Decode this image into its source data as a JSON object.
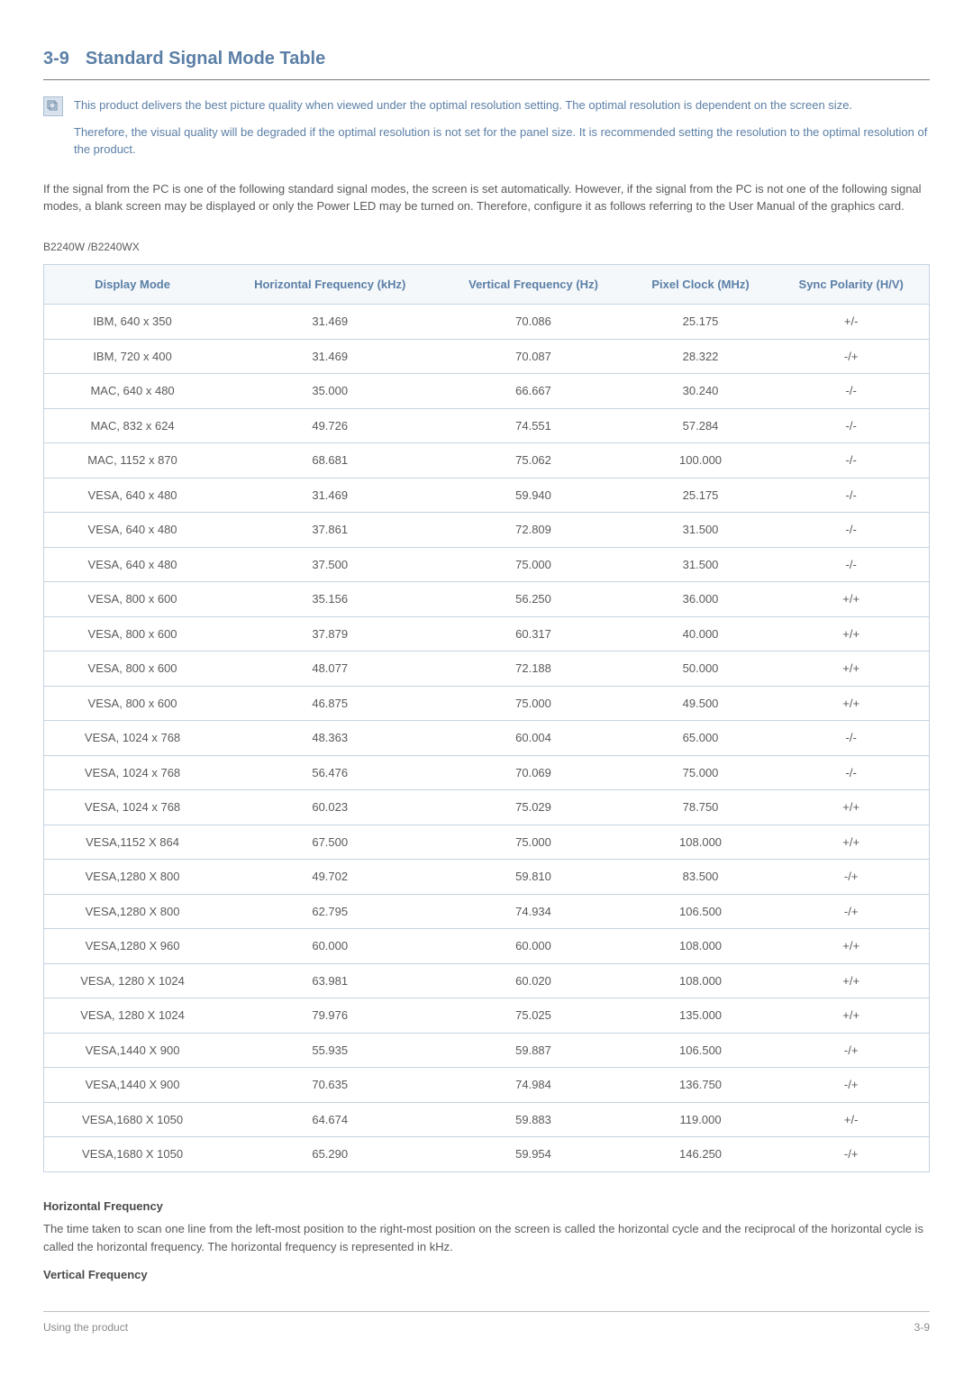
{
  "heading": {
    "number": "3-9",
    "title": "Standard Signal Mode Table"
  },
  "note": {
    "p1": "This product delivers the best picture quality when viewed under the optimal resolution setting. The optimal resolution is dependent on the screen size.",
    "p2": "Therefore, the visual quality will be degraded if the optimal resolution is not set for the panel size. It is recommended setting the resolution to the optimal resolution of the product."
  },
  "intro": "If the signal from the PC is one of the following standard signal modes, the screen is set automatically. However, if the signal from the PC is not one of the following signal modes, a blank screen may be displayed or only the Power LED may be turned on. Therefore, configure it as follows referring to the User Manual of the graphics card.",
  "model": "B2240W /B2240WX",
  "table": {
    "columns": [
      "Display Mode",
      "Horizontal Frequency (kHz)",
      "Vertical Frequency (Hz)",
      "Pixel Clock (MHz)",
      "Sync Polarity (H/V)"
    ],
    "rows": [
      [
        "IBM, 640 x 350",
        "31.469",
        "70.086",
        "25.175",
        "+/-"
      ],
      [
        "IBM, 720 x 400",
        "31.469",
        "70.087",
        "28.322",
        "-/+"
      ],
      [
        "MAC, 640 x 480",
        "35.000",
        "66.667",
        "30.240",
        "-/-"
      ],
      [
        "MAC, 832 x 624",
        "49.726",
        "74.551",
        "57.284",
        "-/-"
      ],
      [
        "MAC, 1152 x 870",
        "68.681",
        "75.062",
        "100.000",
        "-/-"
      ],
      [
        "VESA, 640 x 480",
        "31.469",
        "59.940",
        "25.175",
        "-/-"
      ],
      [
        "VESA, 640 x 480",
        "37.861",
        "72.809",
        "31.500",
        "-/-"
      ],
      [
        "VESA, 640 x 480",
        "37.500",
        "75.000",
        "31.500",
        "-/-"
      ],
      [
        "VESA, 800 x 600",
        "35.156",
        "56.250",
        "36.000",
        "+/+"
      ],
      [
        "VESA, 800 x 600",
        "37.879",
        "60.317",
        "40.000",
        "+/+"
      ],
      [
        "VESA, 800 x 600",
        "48.077",
        "72.188",
        "50.000",
        "+/+"
      ],
      [
        "VESA, 800 x 600",
        "46.875",
        "75.000",
        "49.500",
        "+/+"
      ],
      [
        "VESA, 1024 x 768",
        "48.363",
        "60.004",
        "65.000",
        "-/-"
      ],
      [
        "VESA, 1024 x 768",
        "56.476",
        "70.069",
        "75.000",
        "-/-"
      ],
      [
        "VESA, 1024 x 768",
        "60.023",
        "75.029",
        "78.750",
        "+/+"
      ],
      [
        "VESA,1152 X 864",
        "67.500",
        "75.000",
        "108.000",
        "+/+"
      ],
      [
        "VESA,1280 X 800",
        "49.702",
        "59.810",
        "83.500",
        "-/+"
      ],
      [
        "VESA,1280 X 800",
        "62.795",
        "74.934",
        "106.500",
        "-/+"
      ],
      [
        "VESA,1280 X 960",
        "60.000",
        "60.000",
        "108.000",
        "+/+"
      ],
      [
        "VESA, 1280 X 1024",
        "63.981",
        "60.020",
        "108.000",
        "+/+"
      ],
      [
        "VESA, 1280 X 1024",
        "79.976",
        "75.025",
        "135.000",
        "+/+"
      ],
      [
        "VESA,1440 X 900",
        "55.935",
        "59.887",
        "106.500",
        "-/+"
      ],
      [
        "VESA,1440 X 900",
        "70.635",
        "74.984",
        "136.750",
        "-/+"
      ],
      [
        "VESA,1680 X 1050",
        "64.674",
        "59.883",
        "119.000",
        "+/-"
      ],
      [
        "VESA,1680 X 1050",
        "65.290",
        "59.954",
        "146.250",
        "-/+"
      ]
    ]
  },
  "defs": {
    "hf_title": "Horizontal Frequency",
    "hf_body": "The time taken to scan one line from the left-most position to the right-most position on the screen is called the horizontal cycle and the reciprocal of the horizontal cycle is called the horizontal frequency. The horizontal frequency is represented in kHz.",
    "vf_title": "Vertical Frequency"
  },
  "footer": {
    "left": "Using the product",
    "right": "3-9"
  },
  "colors": {
    "accent": "#5b7fa6",
    "th_bg": "#f5f8fb",
    "border": "#c5d3e2",
    "text": "#5a5a5a"
  }
}
